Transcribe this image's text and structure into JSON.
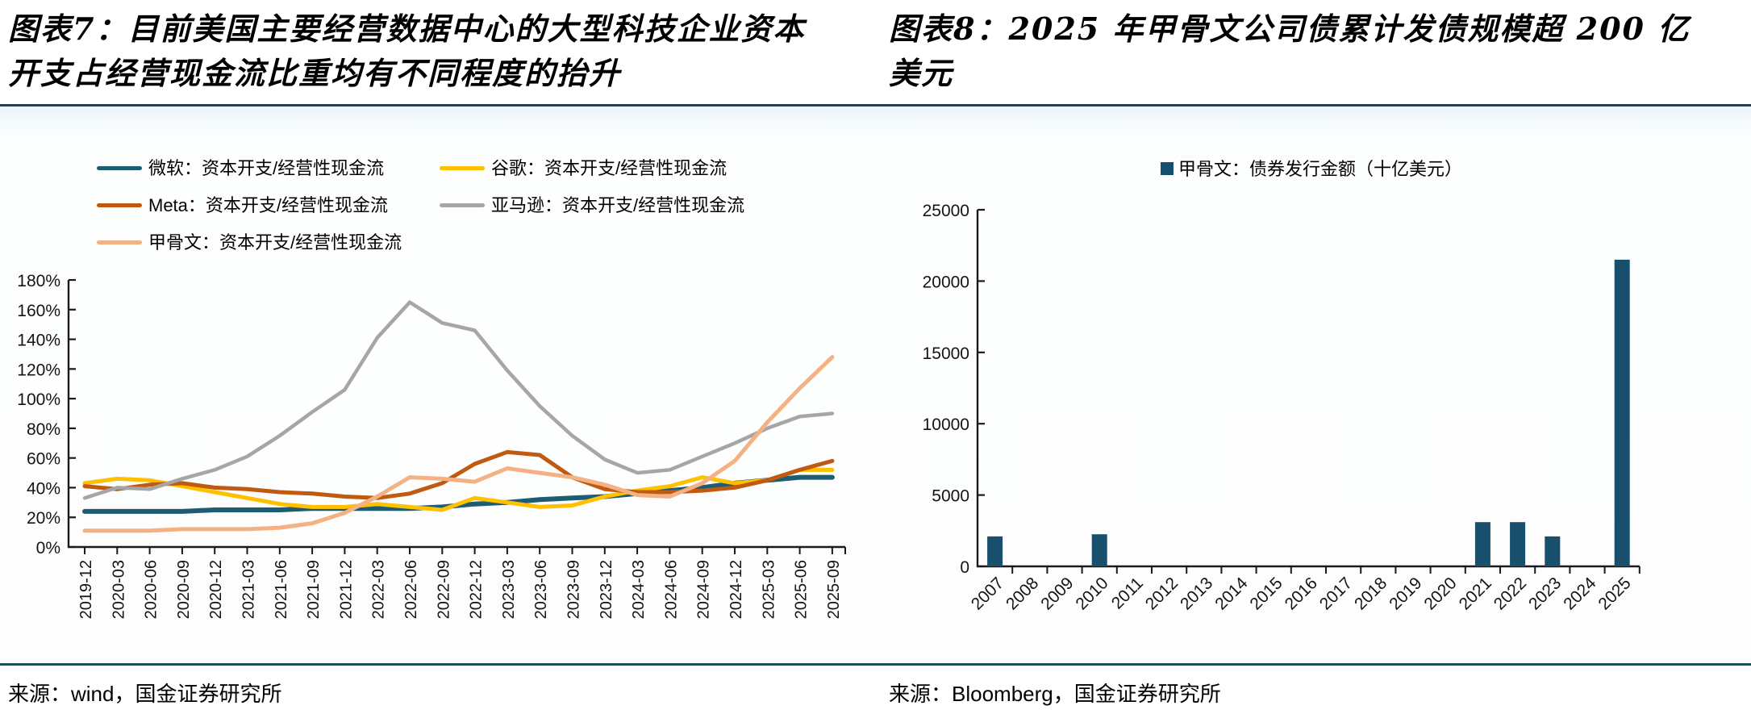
{
  "chart_data": [
    {
      "type": "line",
      "title": "图表7：目前美国主要经营数据中心的大型科技企业资本开支占经营现金流比重均有不同程度的抬升",
      "source": "来源：wind，国金证券研究所",
      "legend_position": "top-left",
      "grid": false,
      "ylim": [
        0,
        180
      ],
      "ytick_step": 20,
      "ytick_suffix": "%",
      "categories": [
        "2019-12",
        "2020-03",
        "2020-06",
        "2020-09",
        "2020-12",
        "2021-03",
        "2021-06",
        "2021-09",
        "2021-12",
        "2022-03",
        "2022-06",
        "2022-09",
        "2022-12",
        "2023-03",
        "2023-06",
        "2023-09",
        "2023-12",
        "2024-03",
        "2024-06",
        "2024-09",
        "2024-12",
        "2025-03",
        "2025-06",
        "2025-09"
      ],
      "series": [
        {
          "name": "微软：资本开支/经营性现金流",
          "color": "#1e5c74",
          "values": [
            24,
            24,
            24,
            24,
            25,
            25,
            25,
            26,
            26,
            26,
            26,
            27,
            29,
            30,
            32,
            33,
            34,
            36,
            38,
            40,
            43,
            45,
            47,
            47
          ]
        },
        {
          "name": "谷歌：资本开支/经营性现金流",
          "color": "#ffc000",
          "values": [
            43,
            46,
            45,
            41,
            37,
            33,
            29,
            27,
            27,
            29,
            27,
            25,
            33,
            30,
            27,
            28,
            34,
            38,
            41,
            47,
            43,
            45,
            52,
            52
          ]
        },
        {
          "name": "Meta：资本开支/经营性现金流",
          "color": "#c05a11",
          "values": [
            41,
            39,
            42,
            43,
            40,
            39,
            37,
            36,
            34,
            33,
            36,
            43,
            56,
            64,
            62,
            47,
            39,
            37,
            37,
            38,
            40,
            45,
            52,
            58
          ]
        },
        {
          "name": "亚马逊：资本开支/经营性现金流",
          "color": "#a6a6a6",
          "values": [
            33,
            40,
            39,
            46,
            52,
            61,
            75,
            91,
            106,
            141,
            165,
            151,
            146,
            119,
            95,
            75,
            59,
            50,
            52,
            61,
            70,
            80,
            88,
            90
          ]
        },
        {
          "name": "甲骨文：资本开支/经营性现金流",
          "color": "#f4b183",
          "values": [
            11,
            11,
            11,
            12,
            12,
            12,
            13,
            16,
            23,
            34,
            47,
            46,
            44,
            53,
            50,
            47,
            42,
            35,
            34,
            43,
            58,
            84,
            107,
            128
          ]
        }
      ]
    },
    {
      "type": "bar",
      "title": "图表8：2025 年甲骨文公司债累计发债规模超 200 亿美元",
      "source": "来源：Bloomberg，国金证券研究所",
      "legend": "甲骨文：债券发行金额（十亿美元）",
      "grid": false,
      "ylim": [
        0,
        25000
      ],
      "ytick_step": 5000,
      "bar_color": "#174f6d",
      "categories": [
        "2007",
        "2008",
        "2009",
        "2010",
        "2011",
        "2012",
        "2013",
        "2014",
        "2015",
        "2016",
        "2017",
        "2018",
        "2019",
        "2020",
        "2021",
        "2022",
        "2023",
        "2024",
        "2025"
      ],
      "values": [
        2100,
        0,
        0,
        2250,
        0,
        0,
        0,
        0,
        0,
        0,
        0,
        0,
        0,
        0,
        3100,
        3100,
        2100,
        0,
        21500
      ]
    }
  ],
  "accent_colors": {
    "top_divider": "#1f3c61",
    "bottom_divider": "#1c4e57"
  }
}
